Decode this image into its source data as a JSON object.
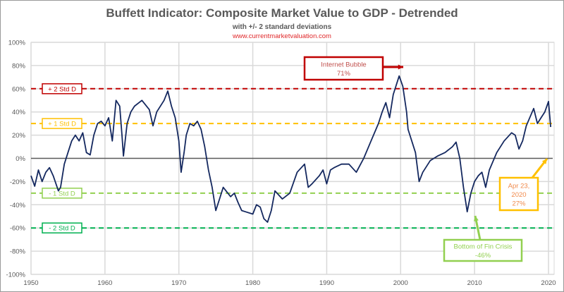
{
  "chart_data": {
    "type": "line",
    "title": "Buffett Indicator: Composite Market Value to GDP - Detrended",
    "subtitle": "with +/- 2 standard deviations",
    "source_url": "www.currentmarketvaluation.com",
    "xlabel": "",
    "ylabel": "",
    "xlim": [
      1950,
      2020
    ],
    "ylim": [
      -100,
      100
    ],
    "x_ticks": [
      1950,
      1960,
      1970,
      1980,
      1990,
      2000,
      2010,
      2020
    ],
    "y_ticks": [
      100,
      80,
      60,
      40,
      20,
      0,
      -20,
      -40,
      -60,
      -80,
      -100
    ],
    "y_tick_labels": [
      "100%",
      "80%",
      "60%",
      "40%",
      "20%",
      "0%",
      "-20%",
      "-40%",
      "-60%",
      "-80%",
      "-100%"
    ],
    "grid": true,
    "series": [
      {
        "name": "Detrended Market Value to GDP",
        "color": "#14285f",
        "x": [
          1950,
          1950.5,
          1951,
          1951.5,
          1952,
          1952.5,
          1953,
          1953.7,
          1954,
          1954.5,
          1955,
          1955.5,
          1956,
          1956.5,
          1957,
          1957.5,
          1958,
          1958.5,
          1959,
          1959.5,
          1960,
          1960.5,
          1961,
          1961.5,
          1962,
          1962.3,
          1962.5,
          1963,
          1963.5,
          1964,
          1965,
          1966,
          1966.5,
          1967,
          1968,
          1968.5,
          1969,
          1969.5,
          1970,
          1970.3,
          1970.7,
          1971,
          1971.5,
          1972,
          1972.5,
          1973,
          1973.5,
          1974,
          1974.5,
          1975,
          1975.5,
          1976,
          1977,
          1977.5,
          1978,
          1978.5,
          1979,
          1980,
          1980.5,
          1981,
          1981.5,
          1982,
          1982.5,
          1983,
          1984,
          1985,
          1986,
          1987,
          1987.5,
          1988,
          1989,
          1989.5,
          1990,
          1990.5,
          1991,
          1992,
          1993,
          1994,
          1995,
          1996,
          1997,
          1997.5,
          1998,
          1998.5,
          1999,
          1999.8,
          2000.3,
          2000.8,
          2001,
          2002,
          2002.5,
          2003,
          2004,
          2005,
          2006,
          2007,
          2007.5,
          2008,
          2008.5,
          2009,
          2009.5,
          2010,
          2010.5,
          2011,
          2011.5,
          2012,
          2013,
          2014,
          2015,
          2015.5,
          2016,
          2016.5,
          2017,
          2018,
          2018.5,
          2019,
          2019.5,
          2020,
          2020.3
        ],
        "values": [
          -15,
          -24,
          -10,
          -20,
          -12,
          -8,
          -15,
          -28,
          -25,
          -5,
          5,
          15,
          20,
          15,
          22,
          5,
          3,
          20,
          30,
          32,
          28,
          35,
          15,
          50,
          45,
          20,
          2,
          30,
          40,
          45,
          50,
          42,
          28,
          40,
          50,
          58,
          45,
          35,
          15,
          -12,
          5,
          20,
          30,
          28,
          32,
          25,
          10,
          -10,
          -25,
          -45,
          -35,
          -25,
          -33,
          -30,
          -38,
          -45,
          -46,
          -48,
          -40,
          -42,
          -52,
          -55,
          -45,
          -28,
          -35,
          -30,
          -12,
          -5,
          -25,
          -22,
          -15,
          -10,
          -22,
          -10,
          -8,
          -5,
          -5,
          -12,
          0,
          15,
          30,
          40,
          48,
          35,
          55,
          71,
          62,
          40,
          25,
          5,
          -20,
          -12,
          -2,
          2,
          5,
          10,
          14,
          0,
          -25,
          -46,
          -30,
          -20,
          -15,
          -12,
          -25,
          -10,
          5,
          15,
          22,
          20,
          8,
          15,
          28,
          43,
          30,
          35,
          40,
          49,
          27
        ]
      }
    ],
    "reference_lines": [
      {
        "label": "+ 2 Std D",
        "value": 60,
        "color": "#c00000"
      },
      {
        "label": "+ 1 Std D",
        "value": 30,
        "color": "#ffc000"
      },
      {
        "label": "- 1 Std D",
        "value": -30,
        "color": "#92d050"
      },
      {
        "label": "- 2 Std D",
        "value": -60,
        "color": "#00b050"
      }
    ],
    "annotations": [
      {
        "lines": [
          "Internet Bubble",
          "71%"
        ],
        "x": 2000,
        "y": 71,
        "color": "#c00000",
        "text_color": "#c0504d"
      },
      {
        "lines": [
          "Bottom of Fin Crisis",
          "-46%"
        ],
        "x": 2009,
        "y": -46,
        "color": "#92d050",
        "text_color": "#92d050"
      },
      {
        "lines": [
          "Apr 23,",
          "2020",
          "27%"
        ],
        "x": 2020.3,
        "y": 27,
        "color": "#ffc000",
        "text_color": "#f08a4b"
      }
    ]
  }
}
